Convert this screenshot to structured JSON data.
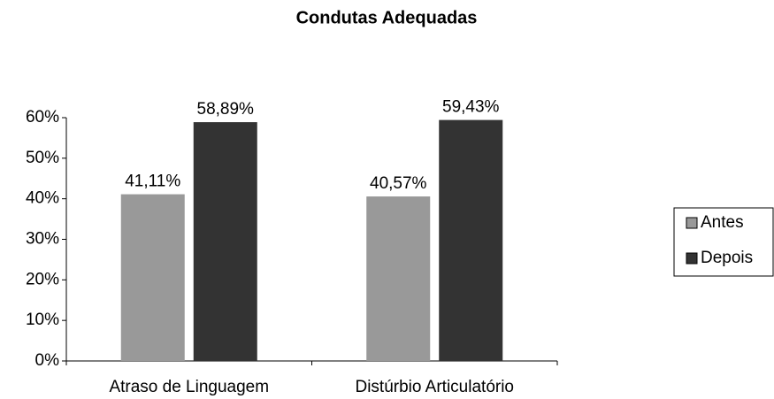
{
  "chart_data": {
    "type": "bar",
    "title": "Condutas Adequadas",
    "categories": [
      "Atraso de Linguagem",
      "Distúrbio Articulatório"
    ],
    "series": [
      {
        "name": "Antes",
        "color": "#999999",
        "values": [
          41.11,
          40.57
        ],
        "value_labels": [
          "41,11%",
          "40,57%"
        ]
      },
      {
        "name": "Depois",
        "color": "#333333",
        "values": [
          58.89,
          59.43
        ],
        "value_labels": [
          "58,89%",
          "59,43%"
        ]
      }
    ],
    "ylim": [
      0,
      60
    ],
    "yticks": [
      {
        "value": 0,
        "label": "0%"
      },
      {
        "value": 10,
        "label": "10%"
      },
      {
        "value": 20,
        "label": "20%"
      },
      {
        "value": 30,
        "label": "30%"
      },
      {
        "value": 40,
        "label": "40%"
      },
      {
        "value": 50,
        "label": "50%"
      },
      {
        "value": 60,
        "label": "60%"
      }
    ],
    "legend": "right"
  }
}
